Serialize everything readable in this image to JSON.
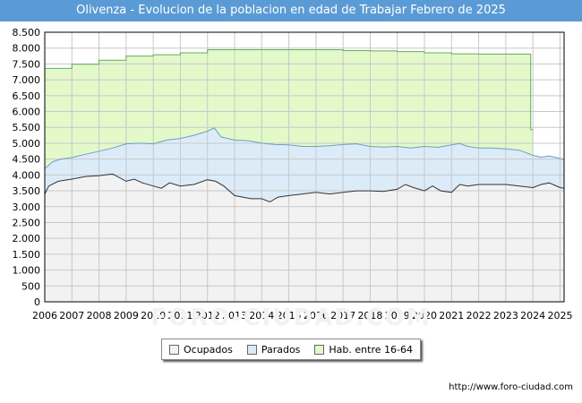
{
  "title": "Olivenza - Evolucion de la poblacion en edad de Trabajar Febrero de 2025",
  "watermark": "FORO-CIUDAD.COM",
  "footer_url": "http://www.foro-ciudad.com",
  "colors": {
    "title_bg": "#5b9bd5",
    "hab_fill": "#e3f9c9",
    "hab_line": "#5fae5f",
    "parados_fill": "#dcebf8",
    "parados_line": "#6e9ec8",
    "ocupados_fill": "#f2f2f2",
    "ocupados_line": "#333333",
    "grid": "#c8c8c8"
  },
  "legend": [
    {
      "label": "Ocupados",
      "color": "#f2f2f2"
    },
    {
      "label": "Parados",
      "color": "#dcebf8"
    },
    {
      "label": "Hab. entre 16-64",
      "color": "#e3f9c9"
    }
  ],
  "chart_data": {
    "type": "area",
    "title": "Olivenza - Evolucion de la poblacion en edad de Trabajar Febrero de 2025",
    "xlabel": "",
    "ylabel": "",
    "xlim": [
      2006,
      2025.15
    ],
    "ylim": [
      0,
      8500
    ],
    "x_ticks": [
      2006,
      2007,
      2008,
      2009,
      2010,
      2011,
      2012,
      2013,
      2014,
      2015,
      2016,
      2017,
      2018,
      2019,
      2020,
      2021,
      2022,
      2023,
      2024,
      2025
    ],
    "y_ticks": [
      0,
      500,
      1000,
      1500,
      2000,
      2500,
      3000,
      3500,
      4000,
      4500,
      5000,
      5500,
      6000,
      6500,
      7000,
      7500,
      8000,
      8500
    ],
    "y_tick_labels": [
      "0",
      "500",
      "1.000",
      "1.500",
      "2.000",
      "2.500",
      "3.000",
      "3.500",
      "4.000",
      "4.500",
      "5.000",
      "5.500",
      "6.000",
      "6.500",
      "7.000",
      "7.500",
      "8.000",
      "8.500"
    ],
    "grid": true,
    "series": [
      {
        "name": "Hab. entre 16-64",
        "style": "step",
        "x": [
          2006,
          2007,
          2008,
          2009,
          2010,
          2011,
          2012,
          2013,
          2014,
          2015,
          2016,
          2017,
          2018,
          2019,
          2020,
          2021,
          2022,
          2023,
          2023.92,
          2024
        ],
        "values": [
          7360,
          7490,
          7620,
          7750,
          7790,
          7850,
          7950,
          7950,
          7950,
          7950,
          7950,
          7920,
          7910,
          7890,
          7850,
          7820,
          7810,
          7810,
          5430,
          5430
        ]
      },
      {
        "name": "Parados",
        "style": "line",
        "x": [
          2006,
          2006.3,
          2006.6,
          2007,
          2007.5,
          2008,
          2008.5,
          2009,
          2009.5,
          2010,
          2010.5,
          2011,
          2011.5,
          2012,
          2012.25,
          2012.5,
          2013,
          2013.5,
          2014,
          2014.5,
          2015,
          2015.5,
          2016,
          2016.5,
          2017,
          2017.5,
          2018,
          2018.5,
          2019,
          2019.5,
          2020,
          2020.5,
          2021,
          2021.3,
          2021.6,
          2022,
          2022.5,
          2023,
          2023.5,
          2024,
          2024.3,
          2024.6,
          2025,
          2025.15
        ],
        "values": [
          4200,
          4420,
          4500,
          4550,
          4650,
          4750,
          4850,
          4980,
          5000,
          4980,
          5100,
          5150,
          5250,
          5380,
          5480,
          5200,
          5100,
          5080,
          5000,
          4960,
          4950,
          4900,
          4900,
          4920,
          4960,
          4980,
          4900,
          4880,
          4900,
          4850,
          4900,
          4870,
          4950,
          4990,
          4900,
          4850,
          4850,
          4820,
          4780,
          4620,
          4560,
          4600,
          4520,
          4480
        ]
      },
      {
        "name": "Ocupados",
        "style": "line",
        "x": [
          2006,
          2006.15,
          2006.5,
          2007,
          2007.5,
          2008,
          2008.5,
          2009,
          2009.3,
          2009.6,
          2010,
          2010.3,
          2010.6,
          2011,
          2011.5,
          2012,
          2012.3,
          2012.6,
          2013,
          2013.3,
          2013.6,
          2014,
          2014.3,
          2014.6,
          2015,
          2015.5,
          2016,
          2016.5,
          2017,
          2017.5,
          2018,
          2018.5,
          2019,
          2019.3,
          2019.6,
          2020,
          2020.3,
          2020.6,
          2021,
          2021.3,
          2021.6,
          2022,
          2022.5,
          2023,
          2023.5,
          2024,
          2024.3,
          2024.6,
          2025,
          2025.15
        ],
        "values": [
          3400,
          3650,
          3800,
          3870,
          3950,
          3980,
          4030,
          3800,
          3870,
          3750,
          3650,
          3580,
          3750,
          3650,
          3700,
          3850,
          3800,
          3650,
          3350,
          3300,
          3250,
          3250,
          3150,
          3300,
          3350,
          3400,
          3450,
          3400,
          3450,
          3500,
          3500,
          3480,
          3550,
          3700,
          3600,
          3500,
          3650,
          3500,
          3450,
          3700,
          3650,
          3700,
          3700,
          3700,
          3650,
          3600,
          3700,
          3750,
          3600,
          3580
        ]
      }
    ]
  }
}
